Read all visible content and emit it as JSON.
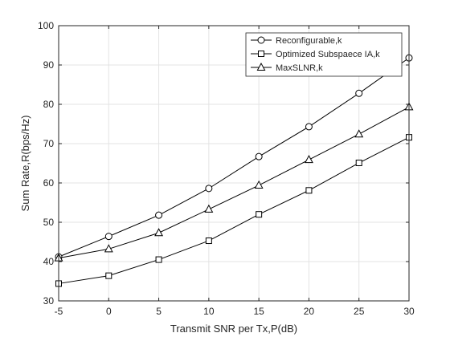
{
  "chart_data": {
    "type": "line",
    "title": "",
    "xlabel": "Transmit SNR per Tx,P(dB)",
    "ylabel": "Sum Rate,R(bps/Hz)",
    "x": [
      -5,
      0,
      5,
      10,
      15,
      20,
      25,
      30
    ],
    "xlim": [
      -5,
      30
    ],
    "ylim": [
      30,
      100
    ],
    "xticks": [
      "-5",
      "0",
      "5",
      "10",
      "15",
      "20",
      "25",
      "30"
    ],
    "yticks": [
      "30",
      "40",
      "50",
      "60",
      "70",
      "80",
      "90",
      "100"
    ],
    "grid": true,
    "legend_position": "top-right",
    "series": [
      {
        "name": "Reconfigurable,k",
        "marker": "circle",
        "color": "#000000",
        "values": [
          41.2,
          46.4,
          51.8,
          58.6,
          66.7,
          74.3,
          82.8,
          91.8
        ]
      },
      {
        "name": "Optimized Subspaece IA,k",
        "marker": "square",
        "color": "#000000",
        "values": [
          34.4,
          36.4,
          40.5,
          45.3,
          52.0,
          58.1,
          65.1,
          71.6
        ]
      },
      {
        "name": "MaxSLNR,k",
        "marker": "triangle",
        "color": "#000000",
        "values": [
          40.9,
          43.2,
          47.3,
          53.3,
          59.4,
          65.9,
          72.4,
          79.3
        ]
      }
    ]
  }
}
